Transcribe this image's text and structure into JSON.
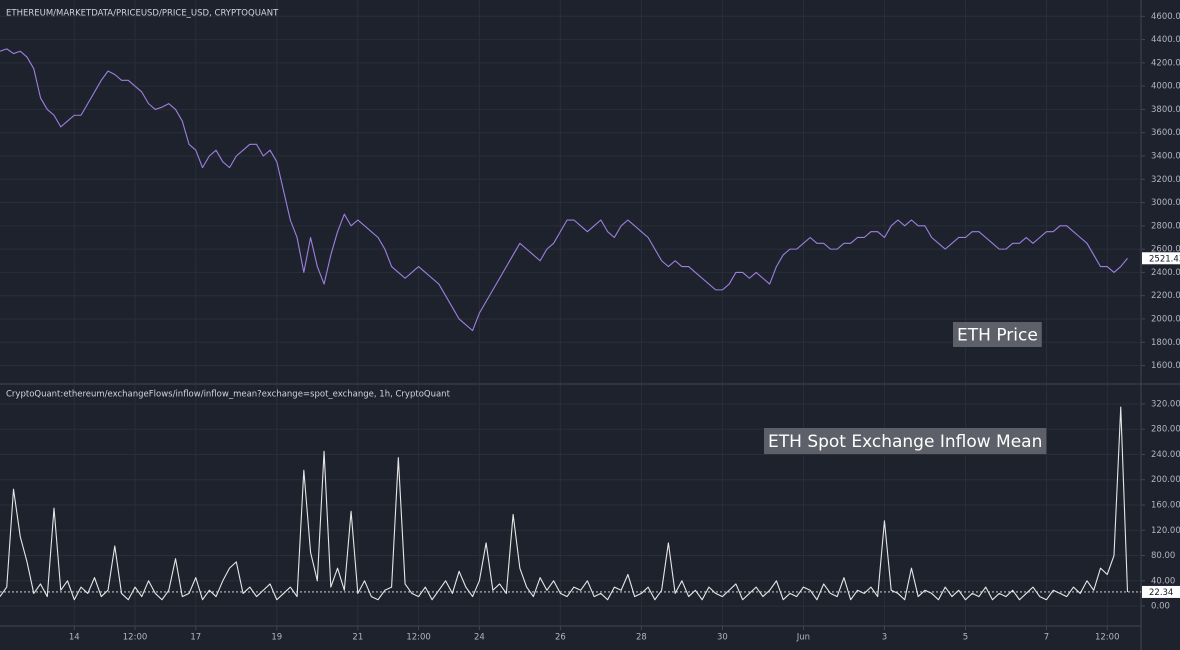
{
  "chart_data": [
    {
      "type": "line",
      "title": "ETHEREUM/MARKETDATA/PRICEUSD/PRICE_USD, CRYPTOQUANT",
      "annotation": "ETH Price",
      "color": "#9d7fe0",
      "grid": true,
      "xlim": [
        0,
        169
      ],
      "ylim": [
        1450,
        4740
      ],
      "yticks": [
        {
          "value": 1600,
          "label": "1600.00"
        },
        {
          "value": 1800,
          "label": "1800.00"
        },
        {
          "value": 2000,
          "label": "2000.00"
        },
        {
          "value": 2200,
          "label": "2200.00"
        },
        {
          "value": 2400,
          "label": "2400.00"
        },
        {
          "value": 2600,
          "label": "2600.00"
        },
        {
          "value": 2800,
          "label": "2800.00"
        },
        {
          "value": 3000,
          "label": "3000.00"
        },
        {
          "value": 3200,
          "label": "3200.00"
        },
        {
          "value": 3400,
          "label": "3400.00"
        },
        {
          "value": 3600,
          "label": "3600.00"
        },
        {
          "value": 3800,
          "label": "3800.00"
        },
        {
          "value": 4000,
          "label": "4000.00"
        },
        {
          "value": 4200,
          "label": "4200.00"
        },
        {
          "value": 4400,
          "label": "4400.00"
        },
        {
          "value": 4600,
          "label": "4600.00"
        }
      ],
      "values": [
        4300,
        4320,
        4280,
        4300,
        4250,
        4150,
        3900,
        3800,
        3750,
        3650,
        3700,
        3750,
        3750,
        3850,
        3950,
        4050,
        4130,
        4100,
        4050,
        4050,
        4000,
        3950,
        3850,
        3800,
        3820,
        3850,
        3800,
        3700,
        3500,
        3450,
        3300,
        3400,
        3450,
        3350,
        3300,
        3400,
        3450,
        3500,
        3500,
        3400,
        3450,
        3350,
        3100,
        2850,
        2700,
        2400,
        2700,
        2450,
        2300,
        2550,
        2750,
        2900,
        2800,
        2850,
        2800,
        2750,
        2700,
        2600,
        2450,
        2400,
        2350,
        2400,
        2450,
        2400,
        2350,
        2300,
        2200,
        2100,
        2000,
        1950,
        1900,
        2050,
        2150,
        2250,
        2350,
        2450,
        2550,
        2650,
        2600,
        2550,
        2500,
        2600,
        2650,
        2750,
        2850,
        2850,
        2800,
        2750,
        2800,
        2850,
        2750,
        2700,
        2800,
        2850,
        2800,
        2750,
        2700,
        2600,
        2500,
        2450,
        2500,
        2450,
        2450,
        2400,
        2350,
        2300,
        2250,
        2250,
        2300,
        2400,
        2400,
        2350,
        2400,
        2350,
        2300,
        2450,
        2550,
        2600,
        2600,
        2650,
        2700,
        2650,
        2650,
        2600,
        2600,
        2650,
        2650,
        2700,
        2700,
        2750,
        2750,
        2700,
        2800,
        2850,
        2800,
        2850,
        2800,
        2800,
        2700,
        2650,
        2600,
        2650,
        2700,
        2700,
        2750,
        2750,
        2700,
        2650,
        2600,
        2600,
        2650,
        2650,
        2700,
        2650,
        2700,
        2750,
        2750,
        2800,
        2800,
        2750,
        2700,
        2650,
        2550,
        2450,
        2450,
        2400,
        2450,
        2521.43
      ]
    },
    {
      "type": "line",
      "title": "CryptoQuant:ethereum/exchangeFlows/inflow/inflow_mean?exchange=spot_exchange, 1h, CryptoQuant",
      "annotation": "ETH Spot Exchange Inflow Mean",
      "color": "#e6e6e6",
      "grid": true,
      "last_value_line": true,
      "xlim": [
        0,
        169
      ],
      "xticks": [
        {
          "value": 11,
          "label": "14"
        },
        {
          "value": 20,
          "label": "12:00"
        },
        {
          "value": 29,
          "label": "17"
        },
        {
          "value": 41,
          "label": "19"
        },
        {
          "value": 53,
          "label": "21"
        },
        {
          "value": 62,
          "label": "12:00"
        },
        {
          "value": 71,
          "label": "24"
        },
        {
          "value": 83,
          "label": "26"
        },
        {
          "value": 95,
          "label": "28"
        },
        {
          "value": 107,
          "label": "30"
        },
        {
          "value": 119,
          "label": "Jun"
        },
        {
          "value": 131,
          "label": "3"
        },
        {
          "value": 143,
          "label": "5"
        },
        {
          "value": 155,
          "label": "7"
        },
        {
          "value": 164,
          "label": "12:00"
        }
      ],
      "ylim": [
        -30,
        350
      ],
      "yticks": [
        {
          "value": 0,
          "label": "0.00"
        },
        {
          "value": 40,
          "label": "40.00"
        },
        {
          "value": 80,
          "label": "80.00"
        },
        {
          "value": 120,
          "label": "120.00"
        },
        {
          "value": 160,
          "label": "160.00"
        },
        {
          "value": 200,
          "label": "200.00"
        },
        {
          "value": 240,
          "label": "240.00"
        },
        {
          "value": 280,
          "label": "280.00"
        },
        {
          "value": 320,
          "label": "320.00"
        }
      ],
      "values": [
        15,
        30,
        185,
        110,
        70,
        20,
        35,
        15,
        155,
        25,
        40,
        10,
        30,
        20,
        45,
        15,
        25,
        95,
        20,
        10,
        30,
        15,
        40,
        20,
        10,
        25,
        75,
        15,
        20,
        45,
        10,
        25,
        15,
        40,
        60,
        70,
        20,
        30,
        15,
        25,
        35,
        10,
        20,
        30,
        15,
        215,
        85,
        40,
        245,
        30,
        60,
        25,
        150,
        20,
        40,
        15,
        10,
        25,
        30,
        235,
        35,
        20,
        15,
        30,
        10,
        25,
        40,
        20,
        55,
        30,
        15,
        40,
        100,
        25,
        35,
        20,
        145,
        60,
        30,
        15,
        45,
        25,
        40,
        20,
        15,
        30,
        25,
        40,
        15,
        20,
        10,
        30,
        25,
        50,
        15,
        20,
        30,
        10,
        25,
        100,
        20,
        40,
        15,
        25,
        10,
        30,
        20,
        15,
        25,
        35,
        10,
        20,
        30,
        15,
        25,
        40,
        10,
        20,
        15,
        30,
        25,
        10,
        35,
        20,
        15,
        45,
        10,
        25,
        20,
        30,
        15,
        135,
        25,
        20,
        10,
        60,
        15,
        25,
        20,
        10,
        30,
        15,
        25,
        10,
        20,
        15,
        30,
        10,
        20,
        15,
        25,
        10,
        20,
        30,
        15,
        10,
        25,
        20,
        15,
        30,
        20,
        40,
        25,
        60,
        50,
        80,
        315,
        22.34
      ]
    }
  ]
}
